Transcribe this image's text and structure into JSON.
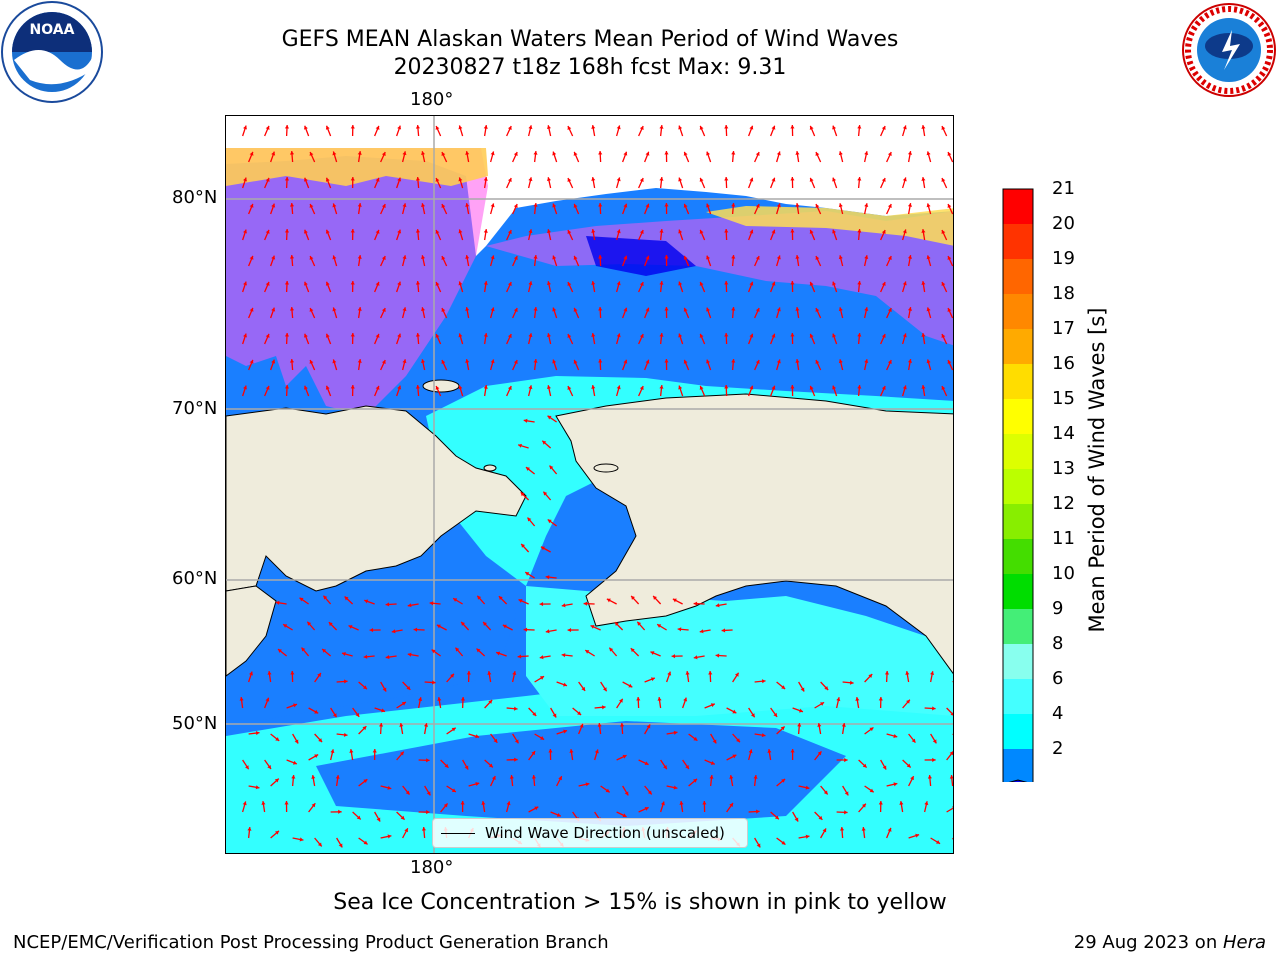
{
  "title": {
    "line1": "GEFS MEAN Alaskan Waters Mean Period of Wind Waves",
    "line2": "20230827 t18z 168h fcst   Max: 9.31"
  },
  "axes": {
    "lon_top": "180°",
    "lon_bottom": "180°",
    "lat_labels": [
      "80°N",
      "70°N",
      "60°N",
      "50°N"
    ]
  },
  "legend": {
    "label": "Wind Wave Direction (unscaled)"
  },
  "colorbar": {
    "title": "Mean Period of Wind Waves [s]",
    "ticks": [
      "21",
      "20",
      "19",
      "18",
      "17",
      "16",
      "15",
      "14",
      "13",
      "12",
      "11",
      "10",
      "9",
      "8",
      "6",
      "4",
      "2"
    ],
    "colors": [
      "#ff0000",
      "#ff3300",
      "#ff6600",
      "#ff8800",
      "#ffaa00",
      "#ffdd00",
      "#ffff00",
      "#ddff00",
      "#bbff00",
      "#88ee00",
      "#44dd00",
      "#00dd00",
      "#44ee77",
      "#88ffee",
      "#44ffff",
      "#00ffff",
      "#0088ff"
    ],
    "extend_color": "#0000ee"
  },
  "caption": "Sea Ice Concentration > 15% is shown in pink to yellow",
  "footer": {
    "credit": "NCEP/EMC/Verification Post Processing Product Generation Branch",
    "date": "29 Aug 2023 on ",
    "host": "Hera"
  },
  "logos": {
    "left": "noaa-logo",
    "left_text": "NOAA",
    "right": "nws-logo",
    "right_text": "NATIONAL WEATHER SERVICE"
  },
  "colors": {
    "land": "#efecdc",
    "ocean_blue": "#1a7fff",
    "ocean_cyan": "#33ffff",
    "arrow": "#ff0000",
    "grid": "#aaaaaa"
  }
}
